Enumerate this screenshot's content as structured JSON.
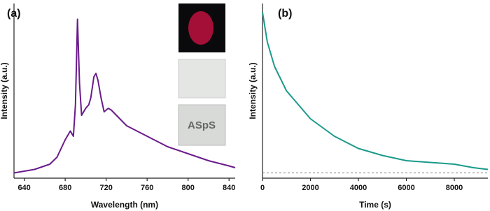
{
  "chart_data": [
    {
      "type": "line",
      "label": "(a)",
      "xlabel": "Wavelength (nm)",
      "ylabel": "Intensity (a.u.)",
      "inset_text": "ASpS",
      "x": [
        630,
        650,
        665,
        672,
        680,
        685,
        688,
        690,
        692,
        694,
        696,
        700,
        703,
        705,
        708,
        710,
        712,
        715,
        718,
        722,
        725,
        730,
        740,
        760,
        780,
        800,
        820,
        840,
        846
      ],
      "series": [
        {
          "color": "#6a1b8a",
          "values": [
            0.03,
            0.05,
            0.08,
            0.12,
            0.22,
            0.27,
            0.24,
            0.42,
            0.91,
            0.54,
            0.36,
            0.4,
            0.42,
            0.46,
            0.58,
            0.6,
            0.56,
            0.46,
            0.38,
            0.4,
            0.39,
            0.36,
            0.3,
            0.24,
            0.18,
            0.14,
            0.1,
            0.07,
            0.06
          ]
        }
      ],
      "xlim": [
        630,
        846
      ],
      "xticks": [
        640,
        680,
        720,
        760,
        800,
        840
      ],
      "ylim": [
        0,
        1
      ]
    },
    {
      "type": "line",
      "label": "(b)",
      "xlabel": "Time (s)",
      "ylabel": "Intensity (a.u.)",
      "x": [
        0,
        200,
        500,
        1000,
        2000,
        3000,
        4000,
        5000,
        6000,
        7000,
        8000,
        8800,
        9400
      ],
      "series": [
        {
          "color": "#1a9a8a",
          "values": [
            0.95,
            0.78,
            0.64,
            0.5,
            0.34,
            0.24,
            0.17,
            0.13,
            0.1,
            0.09,
            0.08,
            0.06,
            0.05
          ]
        }
      ],
      "baseline": 0.03,
      "xlim": [
        0,
        9400
      ],
      "xticks": [
        0,
        2000,
        4000,
        6000,
        8000
      ],
      "ylim": [
        0,
        1
      ]
    }
  ]
}
